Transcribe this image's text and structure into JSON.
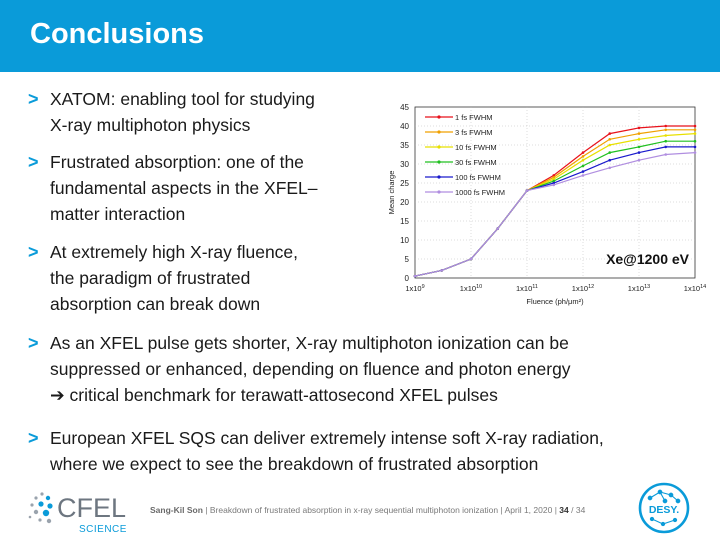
{
  "slide": {
    "title": "Conclusions",
    "bullet_mark": ">",
    "bullets": [
      [
        "XATOM: enabling tool for studying",
        "X-ray multiphoton physics"
      ],
      [
        "Frustrated absorption: one of the",
        "fundamental aspects in the XFEL–",
        "matter interaction"
      ],
      [
        "At extremely high X-ray fluence,",
        "the paradigm of frustrated",
        "absorption can break down"
      ],
      [
        "As an XFEL pulse gets shorter, X-ray multiphoton ionization can be",
        "suppressed or enhanced, depending on fluence and photon energy",
        "➔ critical benchmark for terawatt-attosecond XFEL pulses"
      ],
      [
        "European XFEL SQS can deliver extremely intense soft X-ray radiation,",
        "where we expect to see the breakdown of frustrated absorption"
      ]
    ]
  },
  "footer": {
    "author": "Sang-Kil Son",
    "sep": "|",
    "talk": "Breakdown of frustrated absorption in x-ray sequential multiphoton ionization",
    "date": "April 1, 2020",
    "page": "34",
    "total": "/ 34",
    "cfel_label": "CFEL",
    "cfel_sub": "SCIENCE",
    "desy_label": "DESY."
  },
  "chart_data": {
    "type": "line",
    "annotation": "Xe@1200 eV",
    "xlabel": "Fluence (ph/μm²)",
    "ylabel": "Mean charge",
    "x_scale": "log",
    "xlim": [
      1000000000.0,
      100000000000000.0
    ],
    "ylim": [
      0,
      45
    ],
    "x_ticks": [
      {
        "value": 1000000000.0,
        "base": "1x10",
        "exp": "9"
      },
      {
        "value": 10000000000.0,
        "base": "1x10",
        "exp": "10"
      },
      {
        "value": 100000000000.0,
        "base": "1x10",
        "exp": "11"
      },
      {
        "value": 1000000000000.0,
        "base": "1x10",
        "exp": "12"
      },
      {
        "value": 10000000000000.0,
        "base": "1x10",
        "exp": "13"
      },
      {
        "value": 100000000000000.0,
        "base": "1x10",
        "exp": "14"
      }
    ],
    "y_ticks": [
      0,
      5,
      10,
      15,
      20,
      25,
      30,
      35,
      40,
      45
    ],
    "grid": true,
    "legend_position": "top-left",
    "x": [
      1000000000.0,
      3000000000.0,
      10000000000.0,
      30000000000.0,
      100000000000.0,
      300000000000.0,
      1000000000000.0,
      3000000000000.0,
      10000000000000.0,
      30000000000000.0,
      100000000000000.0
    ],
    "series": [
      {
        "name": "1 fs FWHM",
        "color": "#e8121b",
        "values": [
          0.5,
          2,
          5,
          13,
          23,
          27,
          33,
          38,
          39.5,
          40,
          40
        ]
      },
      {
        "name": "3 fs FWHM",
        "color": "#f0a000",
        "values": [
          0.5,
          2,
          5,
          13,
          23,
          26.5,
          32,
          36.5,
          38,
          39,
          39
        ]
      },
      {
        "name": "10 fs FWHM",
        "color": "#e8e000",
        "values": [
          0.5,
          2,
          5,
          13,
          23,
          26,
          31,
          35,
          36.5,
          37.5,
          38
        ]
      },
      {
        "name": "30 fs FWHM",
        "color": "#20c020",
        "values": [
          0.5,
          2,
          5,
          13,
          23,
          25.5,
          29.5,
          33,
          34.5,
          36,
          36
        ]
      },
      {
        "name": "100 fs FWHM",
        "color": "#1a1acc",
        "values": [
          0.5,
          2,
          5,
          13,
          23,
          25,
          28,
          31,
          33,
          34.5,
          34.5
        ]
      },
      {
        "name": "1000 fs FWHM",
        "color": "#b08ee0",
        "values": [
          0.5,
          2,
          5,
          13,
          23,
          24.5,
          27,
          29,
          31,
          32.5,
          33
        ]
      }
    ]
  }
}
